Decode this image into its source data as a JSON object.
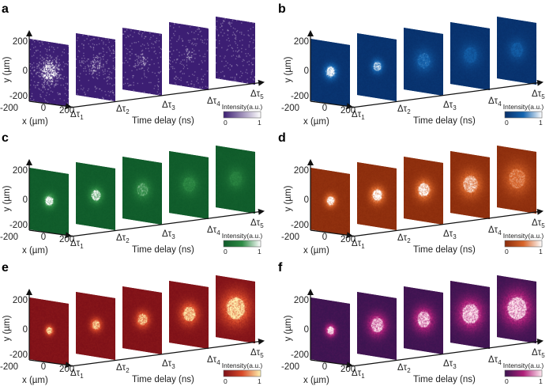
{
  "chart_data": [
    {
      "type": "heatmap",
      "panel": "a",
      "colormap": "purple",
      "colors": [
        "#3c1e73",
        "#ffffff"
      ],
      "frame_base": "#3c1e73",
      "spot_radius_um": [
        110,
        75,
        70,
        60,
        0
      ],
      "spot_intensity": [
        1.0,
        0.45,
        0.35,
        0.3,
        0.05
      ],
      "noise": "sparse-speckle",
      "ylabel": "y (µm)",
      "xlabel": "x (µm)",
      "tlabel": "Time delay (ns)",
      "yticks": [
        "200",
        "0",
        "-200"
      ],
      "xticks": [
        "-200",
        "0",
        "200"
      ],
      "time_labels": [
        "Δτ1",
        "Δτ2",
        "Δτ3",
        "Δτ4",
        "Δτ5"
      ],
      "colorbar": {
        "title": "Intensity(a.u.)",
        "min": "0",
        "max": "1"
      }
    },
    {
      "type": "heatmap",
      "panel": "b",
      "colormap": "blue",
      "colors": [
        "#08306b",
        "#1565b0",
        "#ffffff"
      ],
      "frame_base": "#0b3a7a",
      "spot_radius_um": [
        75,
        70,
        115,
        120,
        110
      ],
      "spot_intensity": [
        1.0,
        0.8,
        0.45,
        0.35,
        0.35
      ],
      "noise": "fine",
      "ylabel": "y (µm)",
      "xlabel": "x (µm)",
      "tlabel": "Time delay (ns)",
      "yticks": [
        "200",
        "0",
        "-200"
      ],
      "xticks": [
        "-200",
        "0",
        "200"
      ],
      "time_labels": [
        "Δτ1",
        "Δτ2",
        "Δτ3",
        "Δτ4",
        "Δτ5"
      ],
      "colorbar": {
        "title": "Intensity(a.u.)",
        "min": "0",
        "max": "1"
      }
    },
    {
      "type": "heatmap",
      "panel": "c",
      "colormap": "green",
      "colors": [
        "#0f5a2a",
        "#2e8b45",
        "#ffffff"
      ],
      "frame_base": "#145e2e",
      "spot_radius_um": [
        70,
        80,
        100,
        110,
        110
      ],
      "spot_intensity": [
        1.0,
        0.85,
        0.55,
        0.4,
        0.35
      ],
      "noise": "fine",
      "ylabel": "y (µm)",
      "xlabel": "x (µm)",
      "tlabel": "Time delay (ns)",
      "yticks": [
        "200",
        "0",
        "-200"
      ],
      "xticks": [
        "-200",
        "0",
        "200"
      ],
      "time_labels": [
        "Δτ1",
        "Δτ2",
        "Δτ3",
        "Δτ4",
        "Δτ5"
      ],
      "colorbar": {
        "title": "Intensity(a.u.)",
        "min": "0",
        "max": "1"
      }
    },
    {
      "type": "heatmap",
      "panel": "d",
      "colormap": "orange",
      "colors": [
        "#8a2c0c",
        "#d8652a",
        "#ffffff"
      ],
      "frame_base": "#96320f",
      "spot_radius_um": [
        65,
        85,
        100,
        130,
        150
      ],
      "spot_intensity": [
        1.0,
        1.0,
        0.9,
        0.75,
        0.55
      ],
      "noise": "fine",
      "ylabel": "y (µm)",
      "xlabel": "x (µm)",
      "tlabel": "Time delay (ns)",
      "yticks": [
        "200",
        "0",
        "-200"
      ],
      "xticks": [
        "-200",
        "0",
        "200"
      ],
      "time_labels": [
        "Δτ1",
        "Δτ2",
        "Δτ3",
        "Δτ4",
        "Δτ5"
      ],
      "colorbar": {
        "title": "Intensity(a.u.)",
        "min": "0",
        "max": "1"
      }
    },
    {
      "type": "heatmap",
      "panel": "e",
      "colormap": "hot",
      "colors": [
        "#7d1018",
        "#d94a2a",
        "#fff2b0"
      ],
      "frame_base": "#7e141b",
      "spot_radius_um": [
        50,
        70,
        85,
        110,
        165
      ],
      "spot_intensity": [
        0.9,
        0.8,
        0.8,
        0.85,
        0.9
      ],
      "noise": "fine",
      "ylabel": "y (µm)",
      "xlabel": "x (µm)",
      "tlabel": "Time delay (ns)",
      "yticks": [
        "200",
        "0",
        "-200"
      ],
      "xticks": [
        "-200",
        "0",
        "200"
      ],
      "time_labels": [
        "Δτ1",
        "Δτ2",
        "Δτ3",
        "Δτ4",
        "Δτ5"
      ],
      "colorbar": {
        "title": "Intensity(a.u.)",
        "min": "0",
        "max": "1"
      }
    },
    {
      "type": "heatmap",
      "panel": "f",
      "colormap": "magma",
      "colors": [
        "#3a1450",
        "#b0207a",
        "#ffe8f0"
      ],
      "frame_base": "#3e1652",
      "spot_radius_um": [
        60,
        110,
        120,
        150,
        170
      ],
      "spot_intensity": [
        1.0,
        0.85,
        0.85,
        0.9,
        0.9
      ],
      "noise": "fine",
      "ylabel": "y (µm)",
      "xlabel": "x (µm)",
      "tlabel": "Time delay (ns)",
      "yticks": [
        "200",
        "0",
        "-200"
      ],
      "xticks": [
        "-200",
        "0",
        "200"
      ],
      "time_labels": [
        "Δτ1",
        "Δτ2",
        "Δτ3",
        "Δτ4",
        "Δτ5"
      ],
      "colorbar": {
        "title": "Intensity(a.u.)",
        "min": "0",
        "max": "1"
      }
    }
  ]
}
